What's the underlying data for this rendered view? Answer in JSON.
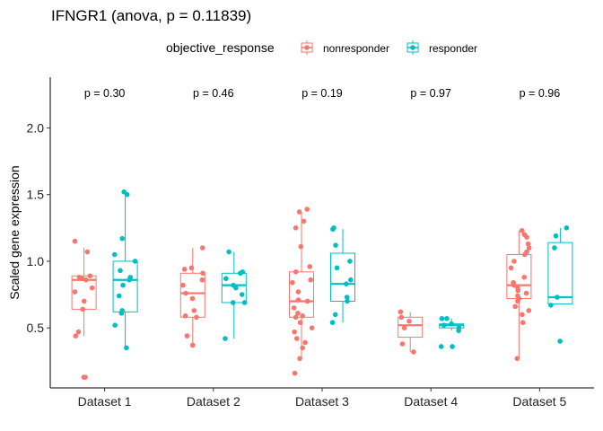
{
  "chart_data": {
    "type": "boxplot",
    "title": "IFNGR1 (anova, p = 0.11839)",
    "xlabel": "",
    "ylabel": "Scaled gene expression",
    "ylim": [
      0.05,
      2.38
    ],
    "yticks": [
      "0.5",
      "1.0",
      "1.5",
      "2.0"
    ],
    "ytick_values": [
      0.5,
      1.0,
      1.5,
      2.0
    ],
    "grid": false,
    "legend": {
      "title": "objective_response",
      "position": "top",
      "entries": [
        "nonresponder",
        "responder"
      ]
    },
    "colors": {
      "nonresponder": "#F8766D",
      "responder": "#00BFC4"
    },
    "categories": [
      "Dataset 1",
      "Dataset 2",
      "Dataset 3",
      "Dataset 4",
      "Dataset 5"
    ],
    "pvalues": [
      "p = 0.30",
      "p = 0.46",
      "p = 0.19",
      "p = 0.97",
      "p = 0.96"
    ],
    "series": [
      {
        "name": "nonresponder",
        "boxes": [
          {
            "min": 0.44,
            "q1": 0.64,
            "median": 0.86,
            "q3": 0.89,
            "max": 1.1,
            "points": [
              0.13,
              0.13,
              0.44,
              0.47,
              0.64,
              0.7,
              0.77,
              0.8,
              0.86,
              0.87,
              0.88,
              0.89,
              1.07,
              1.15
            ]
          },
          {
            "min": 0.37,
            "q1": 0.58,
            "median": 0.76,
            "q3": 0.91,
            "max": 1.1,
            "points": [
              0.37,
              0.44,
              0.58,
              0.59,
              0.63,
              0.72,
              0.76,
              0.82,
              0.86,
              0.91,
              0.94,
              0.95,
              1.1
            ]
          },
          {
            "min": 0.27,
            "q1": 0.58,
            "median": 0.7,
            "q3": 0.92,
            "max": 1.37,
            "points": [
              0.16,
              0.27,
              0.35,
              0.39,
              0.42,
              0.47,
              0.5,
              0.54,
              0.58,
              0.59,
              0.61,
              0.65,
              0.7,
              0.71,
              0.77,
              0.84,
              0.86,
              0.92,
              0.96,
              1.11,
              1.25,
              1.3,
              1.37,
              1.39
            ]
          },
          {
            "min": 0.32,
            "q1": 0.43,
            "median": 0.52,
            "q3": 0.58,
            "max": 0.62,
            "points": [
              0.32,
              0.38,
              0.5,
              0.55,
              0.58,
              0.62
            ]
          },
          {
            "min": 0.27,
            "q1": 0.72,
            "median": 0.82,
            "q3": 1.05,
            "max": 1.23,
            "points": [
              0.27,
              0.54,
              0.6,
              0.63,
              0.66,
              0.7,
              0.72,
              0.74,
              0.76,
              0.78,
              0.8,
              0.82,
              0.84,
              0.88,
              0.95,
              1.0,
              1.05,
              1.07,
              1.1,
              1.13,
              1.18,
              1.2,
              1.23
            ]
          }
        ]
      },
      {
        "name": "responder",
        "boxes": [
          {
            "min": 0.35,
            "q1": 0.62,
            "median": 0.86,
            "q3": 1.0,
            "max": 1.5,
            "points": [
              0.35,
              0.52,
              0.61,
              0.63,
              0.74,
              0.82,
              0.86,
              0.88,
              0.93,
              1.0,
              1.05,
              1.17,
              1.5,
              1.52
            ]
          },
          {
            "min": 0.42,
            "q1": 0.69,
            "median": 0.82,
            "q3": 0.91,
            "max": 1.07,
            "points": [
              0.42,
              0.69,
              0.69,
              0.75,
              0.8,
              0.82,
              0.87,
              0.91,
              0.92,
              1.07
            ]
          },
          {
            "min": 0.54,
            "q1": 0.7,
            "median": 0.83,
            "q3": 1.06,
            "max": 1.24,
            "points": [
              0.54,
              0.6,
              0.7,
              0.73,
              0.83,
              0.86,
              0.95,
              1.0,
              1.12,
              1.24,
              1.25
            ]
          },
          {
            "min": 0.48,
            "q1": 0.5,
            "median": 0.52,
            "q3": 0.53,
            "max": 0.57,
            "points": [
              0.36,
              0.36,
              0.48,
              0.5,
              0.52,
              0.53,
              0.57,
              0.57
            ]
          },
          {
            "min": 0.68,
            "q1": 0.68,
            "median": 0.73,
            "q3": 1.14,
            "max": 1.25,
            "points": [
              0.4,
              0.67,
              0.73,
              1.1,
              1.19,
              1.25
            ]
          }
        ]
      }
    ]
  }
}
